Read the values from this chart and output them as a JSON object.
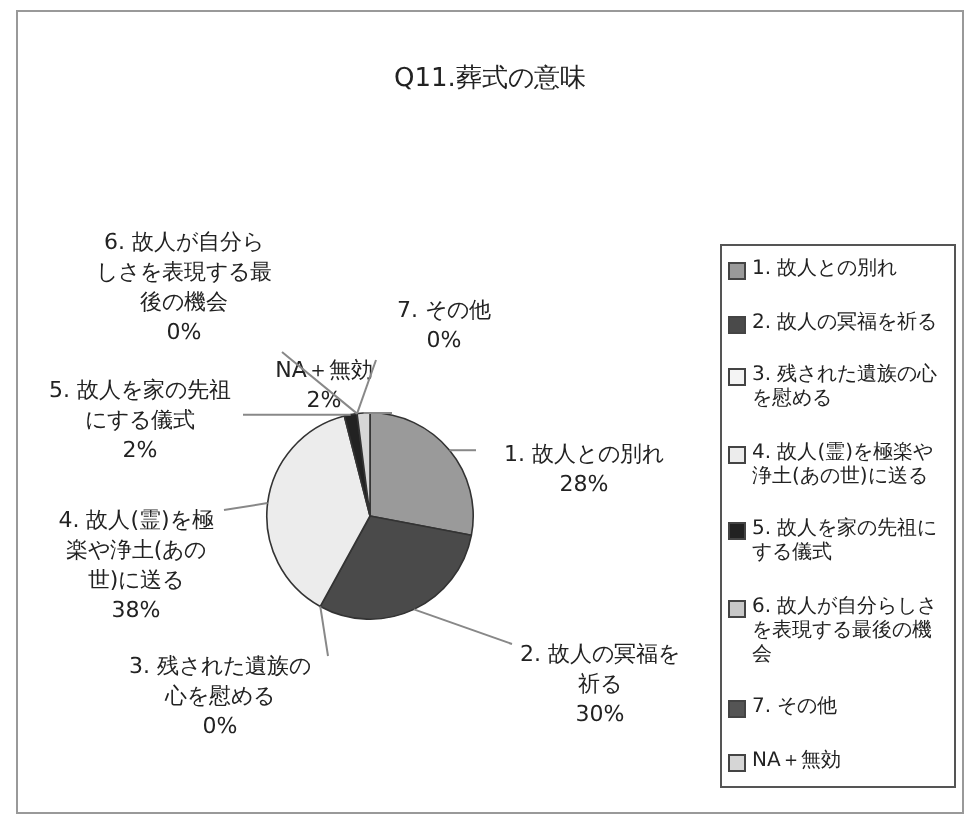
{
  "chart_data": {
    "type": "pie",
    "title": "Q11.葬式の意味",
    "categories": [
      "1. 故人との別れ",
      "2. 故人の冥福を祈る",
      "3. 残された遺族の心を慰める",
      "4. 故人(霊)を極楽や浄土(あの世)に送る",
      "5. 故人を家の先祖にする儀式",
      "6. 故人が自分らしさを表現する最後の機会",
      "7. その他",
      "NA＋無効"
    ],
    "values": [
      28,
      30,
      0,
      38,
      2,
      0,
      0,
      2
    ],
    "colors": [
      "#9a9a9a",
      "#4a4a4a",
      "#f4f4f4",
      "#ececec",
      "#222222",
      "#c8c8c8",
      "#555555",
      "#d6d6d6"
    ],
    "value_labels": [
      "28%",
      "30%",
      "0%",
      "38%",
      "2%",
      "0%",
      "0%",
      "2%"
    ],
    "legend": "right"
  }
}
